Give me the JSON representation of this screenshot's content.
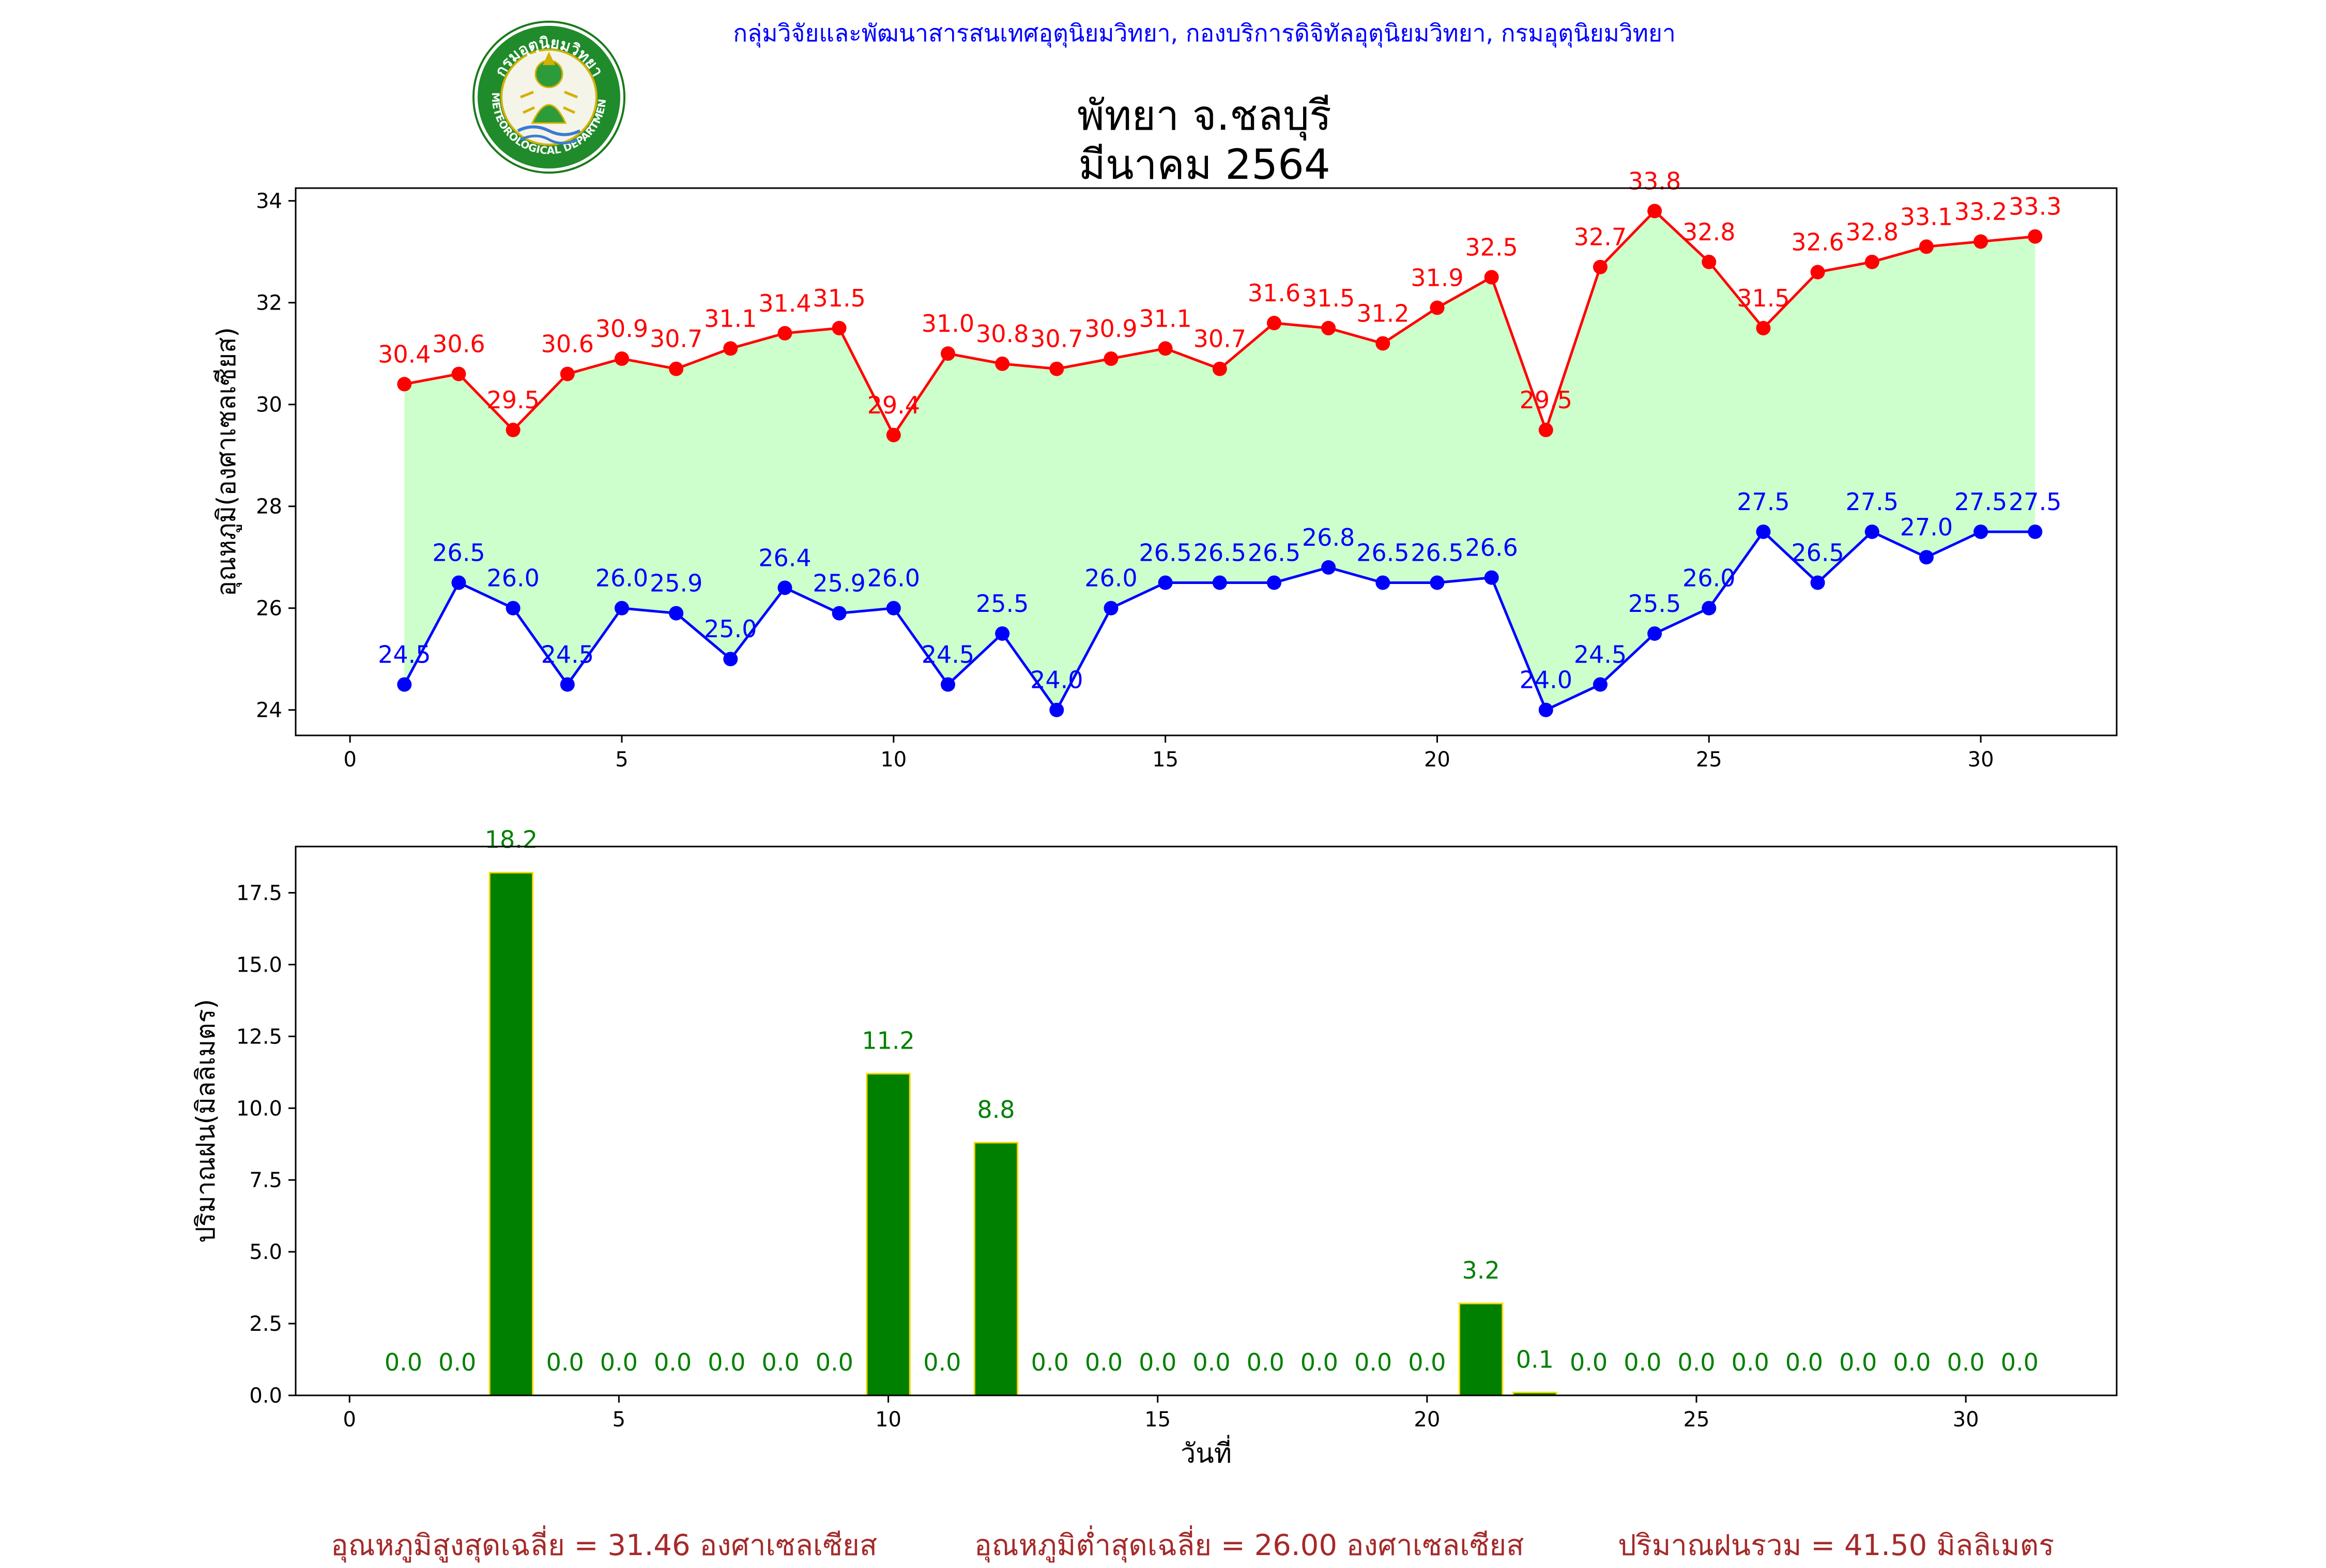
{
  "header": {
    "org_line": "กลุ่มวิจัยและพัฒนาสารสนเทศอุตุนิยมวิทยา, กองบริการดิจิทัลอุตุนิยมวิทยา, กรมอุตุนิยมวิทยา",
    "title_line1": "พัทยา จ.ชลบุรี",
    "title_line2": "มีนาคม 2564",
    "logo": {
      "text_top": "กรมอุตุนิยมวิทยา",
      "text_bottom": "METEOROLOGICAL DEPARTMENT"
    }
  },
  "colors": {
    "max_line": "#ff0000",
    "min_line": "#0000ff",
    "fill": "#ccffcc",
    "bar": "#008000",
    "bar_edge": "#ffd700",
    "rain_label": "#008000",
    "footer": "#a52a2a"
  },
  "chart_data": [
    {
      "type": "line",
      "ylabel": "อุณหภูมิ(องศาเซลเซียส)",
      "xlim": [
        -1,
        32.5
      ],
      "ylim": [
        23.5,
        34.25
      ],
      "xticks": [
        0,
        5,
        10,
        15,
        20,
        25,
        30
      ],
      "yticks": [
        24,
        26,
        28,
        30,
        32,
        34
      ],
      "grid": false,
      "fill_between": true,
      "x": [
        1,
        2,
        3,
        4,
        5,
        6,
        7,
        8,
        9,
        10,
        11,
        12,
        13,
        14,
        15,
        16,
        17,
        18,
        19,
        20,
        21,
        22,
        23,
        24,
        25,
        26,
        27,
        28,
        29,
        30,
        31
      ],
      "series": [
        {
          "role": "max",
          "values": [
            30.4,
            30.6,
            29.5,
            30.6,
            30.9,
            30.7,
            31.1,
            31.4,
            31.5,
            29.4,
            31.0,
            30.8,
            30.7,
            30.9,
            31.1,
            30.7,
            31.6,
            31.5,
            31.2,
            31.9,
            32.5,
            29.5,
            32.7,
            33.8,
            32.8,
            31.5,
            32.6,
            32.8,
            33.1,
            33.2,
            33.3
          ]
        },
        {
          "role": "min",
          "values": [
            24.5,
            26.5,
            26.0,
            24.5,
            26.0,
            25.9,
            25.0,
            26.4,
            25.9,
            26.0,
            24.5,
            25.5,
            24.0,
            26.0,
            26.5,
            26.5,
            26.5,
            26.8,
            26.5,
            26.5,
            26.6,
            24.0,
            24.5,
            25.5,
            26.0,
            27.5,
            26.5,
            27.5,
            27.0,
            27.5,
            27.5
          ]
        }
      ]
    },
    {
      "type": "bar",
      "xlabel": "วันที่",
      "ylabel": "ปริมาณฝน(มิลลิเมตร)",
      "xlim": [
        -1,
        32.8
      ],
      "ylim": [
        0,
        19.11
      ],
      "xticks": [
        0,
        5,
        10,
        15,
        20,
        25,
        30
      ],
      "yticks": [
        0.0,
        2.5,
        5.0,
        7.5,
        10.0,
        12.5,
        15.0,
        17.5
      ],
      "ytick_labels": [
        "0.0",
        "2.5",
        "5.0",
        "7.5",
        "10.0",
        "12.5",
        "15.0",
        "17.5"
      ],
      "grid": false,
      "x": [
        1,
        2,
        3,
        4,
        5,
        6,
        7,
        8,
        9,
        10,
        11,
        12,
        13,
        14,
        15,
        16,
        17,
        18,
        19,
        20,
        21,
        22,
        23,
        24,
        25,
        26,
        27,
        28,
        29,
        30,
        31
      ],
      "values": [
        0.0,
        0.0,
        18.2,
        0.0,
        0.0,
        0.0,
        0.0,
        0.0,
        0.0,
        11.2,
        0.0,
        8.8,
        0.0,
        0.0,
        0.0,
        0.0,
        0.0,
        0.0,
        0.0,
        0.0,
        3.2,
        0.1,
        0.0,
        0.0,
        0.0,
        0.0,
        0.0,
        0.0,
        0.0,
        0.0,
        0.0
      ]
    }
  ],
  "footer": {
    "avg_max": "อุณหภูมิสูงสุดเฉลี่ย = 31.46 องศาเซลเซียส",
    "avg_min": "อุณหภูมิต่ำสุดเฉลี่ย = 26.00 องศาเซลเซียส",
    "total_rain": "ปริมาณฝนรวม = 41.50 มิลลิเมตร"
  }
}
